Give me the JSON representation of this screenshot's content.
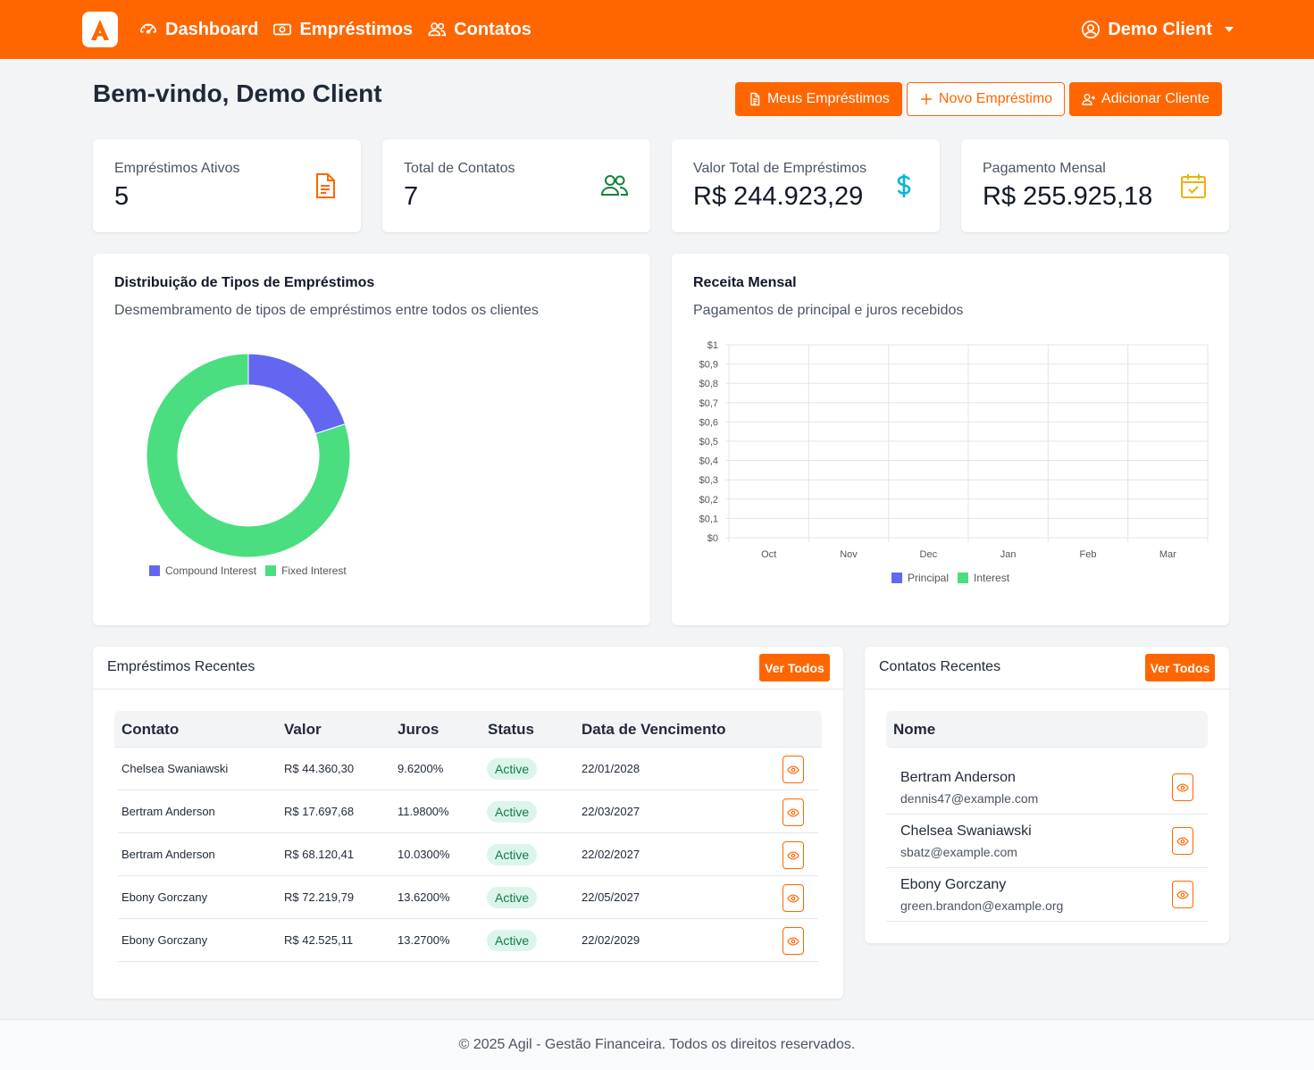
{
  "nav": {
    "logo_letter": "A",
    "links": [
      {
        "label": "Dashboard",
        "icon": "gauge-icon"
      },
      {
        "label": "Empréstimos",
        "icon": "cash-icon"
      },
      {
        "label": "Contatos",
        "icon": "users-icon"
      }
    ],
    "user_name": "Demo Client"
  },
  "header": {
    "title": "Bem-vindo, Demo Client",
    "actions": [
      {
        "label": "Meus Empréstimos",
        "style": "primary",
        "icon": "document-icon"
      },
      {
        "label": "Novo Empréstimo",
        "style": "outline",
        "icon": "plus-icon"
      },
      {
        "label": "Adicionar Cliente",
        "style": "primary",
        "icon": "user-plus-icon"
      }
    ]
  },
  "stats": [
    {
      "label": "Empréstimos Ativos",
      "value": "5",
      "icon": "document-icon",
      "color": "#ff6600"
    },
    {
      "label": "Total de Contatos",
      "value": "7",
      "icon": "users-icon",
      "color": "#15803d"
    },
    {
      "label": "Valor Total de Empréstimos",
      "value": "R$ 244.923,29",
      "icon": "dollar-icon",
      "color": "#06b6d4"
    },
    {
      "label": "Pagamento Mensal",
      "value": "R$ 255.925,18",
      "icon": "calendar-check-icon",
      "color": "#eab308"
    }
  ],
  "charts": {
    "loan_types": {
      "title": "Distribuição de Tipos de Empréstimos",
      "subtitle": "Desmembramento de tipos de empréstimos entre todos os clientes"
    },
    "monthly_revenue": {
      "title": "Receita Mensal",
      "subtitle": "Pagamentos de principal e juros recebidos"
    }
  },
  "chart_data": [
    {
      "type": "pie",
      "variant": "doughnut",
      "labels": [
        "Compound Interest",
        "Fixed Interest"
      ],
      "values": [
        1,
        4
      ],
      "colors": [
        "#6366f1",
        "#4ade80"
      ],
      "legend": "bottom"
    },
    {
      "type": "line",
      "categories": [
        "Oct",
        "Nov",
        "Dec",
        "Jan",
        "Feb",
        "Mar"
      ],
      "series": [
        {
          "name": "Principal",
          "values": [
            0,
            0,
            0,
            0,
            0,
            0
          ],
          "color": "#6366f1"
        },
        {
          "name": "Interest",
          "values": [
            0,
            0,
            0,
            0,
            0,
            0
          ],
          "color": "#4ade80"
        }
      ],
      "ylim": [
        0,
        1
      ],
      "yticks": [
        "$1",
        "$0,9",
        "$0,8",
        "$0,7",
        "$0,6",
        "$0,5",
        "$0,4",
        "$0,3",
        "$0,2",
        "$0,1",
        "$0"
      ],
      "grid": true,
      "legend": "bottom"
    }
  ],
  "recent_loans": {
    "title": "Empréstimos Recentes",
    "view_all": "Ver Todos",
    "columns": [
      "Contato",
      "Valor",
      "Juros",
      "Status",
      "Data de Vencimento"
    ],
    "rows": [
      {
        "contact": "Chelsea Swaniawski",
        "value": "R$ 44.360,30",
        "rate": "9.6200%",
        "status": "Active",
        "due": "22/01/2028"
      },
      {
        "contact": "Bertram Anderson",
        "value": "R$ 17.697,68",
        "rate": "11.9800%",
        "status": "Active",
        "due": "22/03/2027"
      },
      {
        "contact": "Bertram Anderson",
        "value": "R$ 68.120,41",
        "rate": "10.0300%",
        "status": "Active",
        "due": "22/02/2027"
      },
      {
        "contact": "Ebony Gorczany",
        "value": "R$ 72.219,79",
        "rate": "13.6200%",
        "status": "Active",
        "due": "22/05/2027"
      },
      {
        "contact": "Ebony Gorczany",
        "value": "R$ 42.525,11",
        "rate": "13.2700%",
        "status": "Active",
        "due": "22/02/2029"
      }
    ]
  },
  "recent_contacts": {
    "title": "Contatos Recentes",
    "view_all": "Ver Todos",
    "column": "Nome",
    "rows": [
      {
        "name": "Bertram Anderson",
        "email": "dennis47@example.com"
      },
      {
        "name": "Chelsea Swaniawski",
        "email": "sbatz@example.com"
      },
      {
        "name": "Ebony Gorczany",
        "email": "green.brandon@example.org"
      }
    ]
  },
  "footer": {
    "text": "© 2025 Agil - Gestão Financeira. Todos os direitos reservados."
  },
  "colors": {
    "brand": "#ff6600"
  }
}
